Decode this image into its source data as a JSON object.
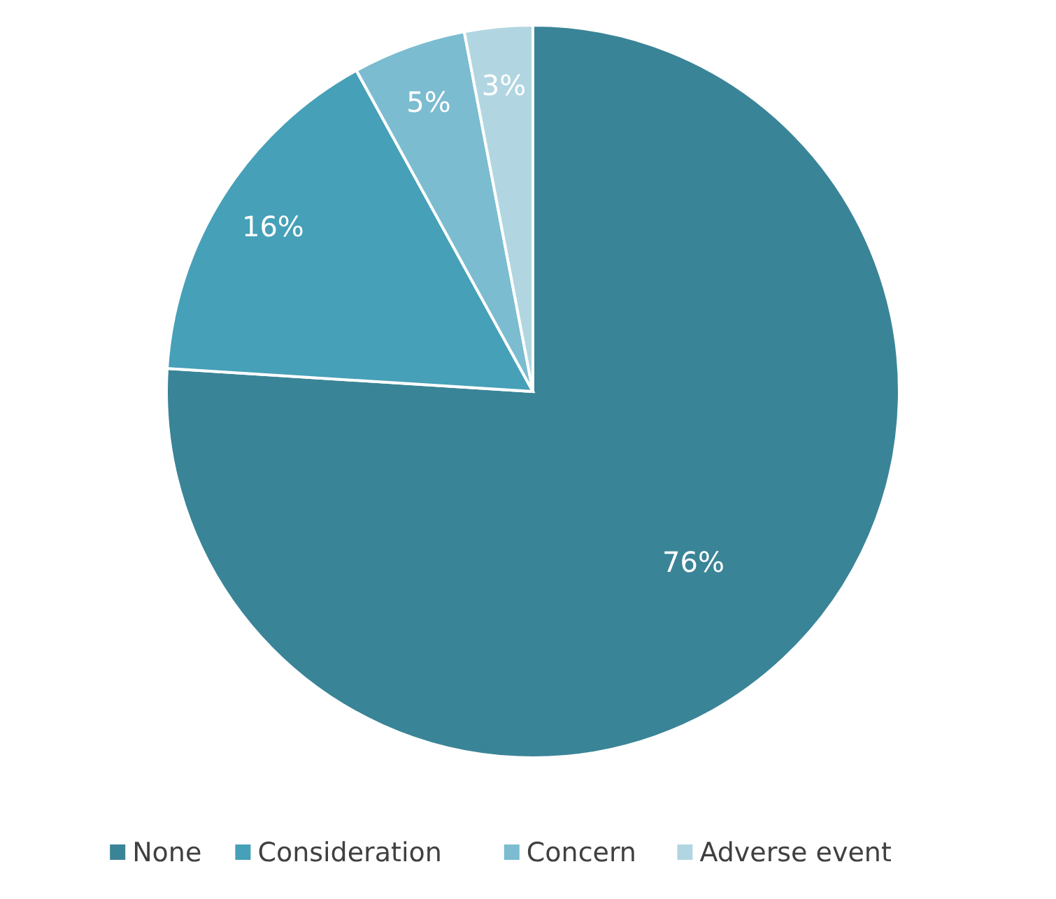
{
  "chart_data": {
    "type": "pie",
    "categories": [
      "None",
      "Consideration",
      "Concern",
      "Adverse event"
    ],
    "values": [
      76,
      16,
      5,
      3
    ],
    "colors": [
      "#3a8497",
      "#46a0b8",
      "#7bbcd0",
      "#b1d6e1"
    ],
    "value_labels": [
      "76%",
      "16%",
      "5%",
      "3%"
    ],
    "legend": "bottom"
  }
}
